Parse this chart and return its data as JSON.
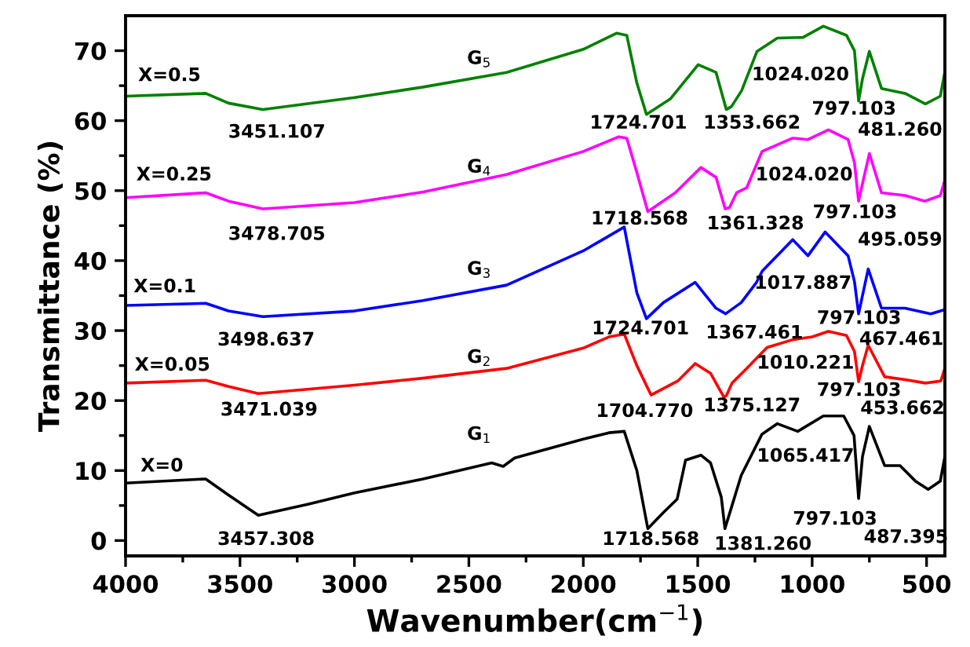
{
  "chart_data": {
    "type": "line",
    "xlabel": "Wavenumber(cm$^{−1}$)",
    "ylabel": "Transmittance (%)",
    "xlim": [
      4000,
      420
    ],
    "ylim": [
      -2.2,
      75
    ],
    "xticks": [
      4000,
      3500,
      3000,
      2500,
      2000,
      1500,
      1000,
      500
    ],
    "yticks": [
      0,
      10,
      20,
      30,
      40,
      50,
      60,
      70
    ],
    "grid": false,
    "legend": false,
    "marker": "none",
    "line_style": "solid",
    "series": [
      {
        "color": "#000000",
        "x": [
          4000,
          3650,
          3550,
          3420,
          3200,
          3000,
          2700,
          2400,
          2350,
          2300,
          2000,
          1888,
          1821,
          1766,
          1718,
          1650,
          1590,
          1553,
          1486,
          1444,
          1397,
          1381,
          1352,
          1310,
          1219,
          1152,
          1063,
          951,
          862,
          817,
          797,
          780,
          750,
          683,
          616,
          549,
          493,
          440,
          420
        ],
        "values": [
          8.2,
          8.8,
          6.5,
          3.6,
          5.2,
          6.8,
          8.8,
          11.1,
          10.6,
          11.8,
          14.5,
          15.4,
          15.6,
          10,
          1.7,
          4,
          5.9,
          11.5,
          12.2,
          11.1,
          6.2,
          1.7,
          4.8,
          9.3,
          15.2,
          16.7,
          15.6,
          17.8,
          17.8,
          15,
          6,
          12,
          16.3,
          10.7,
          10.7,
          8.5,
          7.3,
          8.5,
          12
        ]
      },
      {
        "color": "#ff0000",
        "x": [
          4000,
          3650,
          3550,
          3420,
          3000,
          2700,
          2335,
          2000,
          1888,
          1821,
          1766,
          1704,
          1587,
          1511,
          1444,
          1386,
          1375,
          1350,
          1286,
          1197,
          1085,
          1000,
          929,
          850,
          815,
          797,
          780,
          755,
          683,
          594,
          505,
          438,
          420
        ],
        "values": [
          22.5,
          22.9,
          22,
          21,
          22.2,
          23.2,
          24.6,
          27.5,
          29.1,
          29.5,
          25,
          20.8,
          22.8,
          25.3,
          23.9,
          20.5,
          20.7,
          22.5,
          24.6,
          27.6,
          28.7,
          29.1,
          29.9,
          29.3,
          27,
          22.7,
          25,
          27.9,
          23.4,
          23,
          22.5,
          22.8,
          24.6
        ]
      },
      {
        "color": "#0000ff",
        "x": [
          4000,
          3650,
          3550,
          3400,
          3000,
          2700,
          2335,
          2000,
          1821,
          1766,
          1724,
          1650,
          1511,
          1420,
          1378,
          1310,
          1243,
          1218,
          1085,
          1018,
          943,
          843,
          815,
          797,
          780,
          755,
          697,
          594,
          482,
          420
        ],
        "values": [
          33.6,
          33.9,
          32.8,
          32,
          32.8,
          34.3,
          36.5,
          41.4,
          44.8,
          35.4,
          31.7,
          34,
          36.9,
          33.2,
          32.4,
          34,
          36.9,
          38.5,
          43,
          40.7,
          44.1,
          40.7,
          37,
          32.4,
          35,
          38.8,
          33.2,
          33.2,
          32.4,
          33
        ]
      },
      {
        "color": "#ff00ff",
        "x": [
          4000,
          3650,
          3550,
          3400,
          3000,
          2700,
          2335,
          2000,
          1845,
          1810,
          1766,
          1718,
          1598,
          1486,
          1420,
          1380,
          1361,
          1330,
          1286,
          1219,
          1085,
          1018,
          929,
          843,
          815,
          797,
          780,
          750,
          697,
          594,
          507,
          440,
          420
        ],
        "values": [
          49,
          49.7,
          48.5,
          47.4,
          48.3,
          49.8,
          52.3,
          55.6,
          57.7,
          57.5,
          52.6,
          47,
          49.7,
          53.3,
          51.9,
          47.4,
          47.6,
          49.7,
          50.4,
          55.6,
          57.5,
          57.3,
          58.7,
          57.3,
          54,
          48.5,
          51,
          55.3,
          49.7,
          49.3,
          48.5,
          49.3,
          51.5
        ]
      },
      {
        "color": "#008000",
        "x": [
          4000,
          3650,
          3550,
          3400,
          3000,
          2700,
          2335,
          2000,
          1855,
          1810,
          1766,
          1724,
          1620,
          1498,
          1420,
          1375,
          1353,
          1308,
          1241,
          1152,
          1040,
          951,
          850,
          815,
          797,
          780,
          750,
          697,
          594,
          505,
          440,
          420
        ],
        "values": [
          63.5,
          63.9,
          62.5,
          61.6,
          63.3,
          64.8,
          66.9,
          70.2,
          72.5,
          72.2,
          65.4,
          60.9,
          63.1,
          68,
          66.9,
          61.6,
          62,
          64.3,
          69.9,
          71.8,
          71.9,
          73.5,
          72.2,
          70,
          62.8,
          66,
          69.9,
          64.6,
          63.9,
          62.4,
          63.5,
          67
        ]
      }
    ],
    "annotations": [
      "X=0.5",
      "X=0.25",
      "X=0.1",
      "X=0.05",
      "X=0",
      "G$_{5}$",
      "G$_{4}$",
      "G$_{3}$",
      "G$_{2}$",
      "G$_{1}$",
      "3451.107",
      "3478.705",
      "3498.637",
      "3471.039",
      "3457.308",
      "1724.701",
      "1353.662",
      "1024.020",
      "797.103",
      "481.260",
      "1718.568",
      "1361.328",
      "1024.020",
      "797.103",
      "495.059",
      "1017.887",
      "1724.701",
      "1367.461",
      "797.103",
      "467.461",
      "1010.221",
      "1704.770",
      "1375.127",
      "797.103",
      "453.662",
      "1065.417",
      "1718.568",
      "1381.260",
      "797.103",
      "487.395"
    ]
  }
}
